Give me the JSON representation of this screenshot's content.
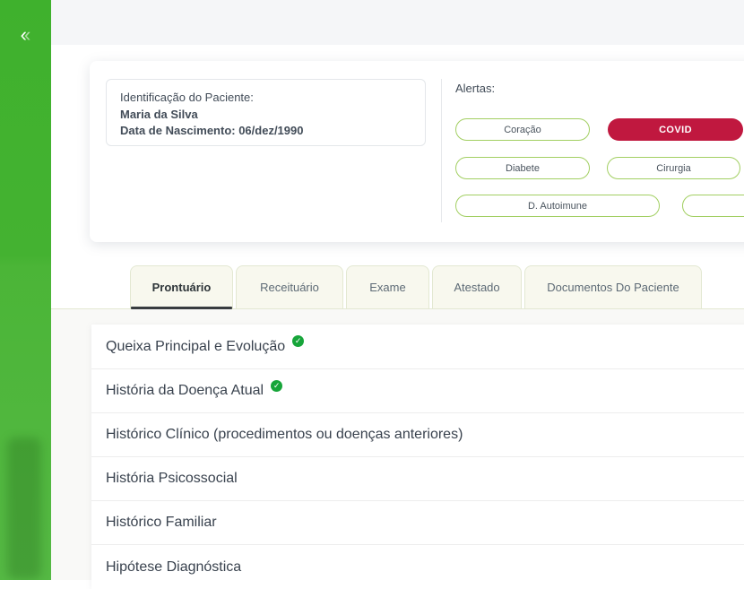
{
  "sidebar": {
    "collapse_icon": "double-chevron-left"
  },
  "patient_card": {
    "label": "Identificação do Paciente:",
    "name": "Maria da Silva",
    "birth_date": "Data de Nascimento: 06/dez/1990"
  },
  "alerts": {
    "label": "Alertas:",
    "pills": [
      {
        "label": "Coração",
        "variant": "outline"
      },
      {
        "label": "COVID",
        "variant": "filled"
      },
      {
        "label": "Diabete",
        "variant": "outline"
      },
      {
        "label": "Cirurgia",
        "variant": "outline"
      },
      {
        "label": "D. Autoimune",
        "variant": "outline"
      },
      {
        "label": "",
        "variant": "outline",
        "note": "partially visible at right edge"
      }
    ],
    "colors": {
      "outline_border": "#a2cf62",
      "filled_bg": "#c0183f"
    }
  },
  "tabs": [
    {
      "label": "Prontuário",
      "active": true
    },
    {
      "label": "Receituário",
      "active": false
    },
    {
      "label": "Exame",
      "active": false
    },
    {
      "label": "Atestado",
      "active": false
    },
    {
      "label": "Documentos Do Paciente",
      "active": false
    }
  ],
  "sections": [
    {
      "label": "Queixa Principal e Evolução",
      "completed": true
    },
    {
      "label": "História da Doença Atual",
      "completed": true
    },
    {
      "label": "Histórico Clínico (procedimentos ou doenças anteriores)",
      "completed": false
    },
    {
      "label": "História Psicossocial",
      "completed": false
    },
    {
      "label": "Histórico Familiar",
      "completed": false
    },
    {
      "label": "Hipótese Diagnóstica",
      "completed": false
    }
  ],
  "colors": {
    "sidebar_green": "#45b42e",
    "topbar_gray": "#f5f6f8",
    "check_green": "#17a53a",
    "active_tab_underline": "#383c3f"
  }
}
